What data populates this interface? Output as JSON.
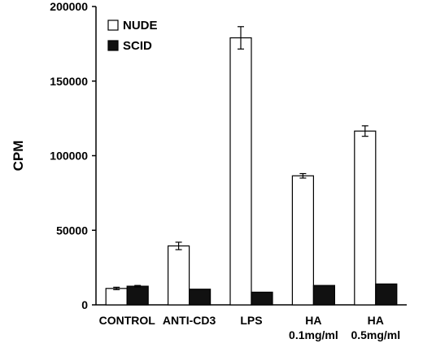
{
  "chart_data": {
    "type": "bar",
    "title": "",
    "xlabel": "",
    "ylabel": "CPM",
    "ylim": [
      0,
      200000
    ],
    "yticks": [
      0,
      50000,
      100000,
      150000,
      200000
    ],
    "ytick_labels": [
      "0",
      "50000",
      "100000",
      "150000",
      "200000"
    ],
    "grid": false,
    "legend_position": "top-left",
    "categories": [
      {
        "line1": "CONTROL",
        "line2": ""
      },
      {
        "line1": "ANTI-CD3",
        "line2": ""
      },
      {
        "line1": "LPS",
        "line2": ""
      },
      {
        "line1": "HA",
        "line2": "0.1mg/ml"
      },
      {
        "line1": "HA",
        "line2": "0.5mg/ml"
      }
    ],
    "series": [
      {
        "name": "NUDE",
        "fill": "#ffffff",
        "values": [
          11000,
          39500,
          179000,
          86500,
          116500
        ],
        "errors": [
          800,
          2500,
          7500,
          1500,
          3500
        ]
      },
      {
        "name": "SCID",
        "fill": "#111111",
        "values": [
          12500,
          10500,
          8500,
          13000,
          14000
        ],
        "errors": [
          500,
          0,
          0,
          0,
          0
        ]
      }
    ]
  }
}
